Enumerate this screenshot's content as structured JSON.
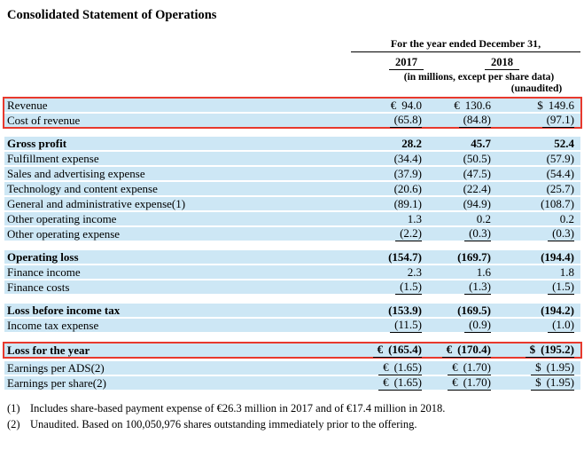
{
  "title": "Consolidated Statement of Operations",
  "header": {
    "period_label": "For the year ended December 31,",
    "year_2017": "2017",
    "year_2018": "2018",
    "units_note": "(in millions, except per share data)",
    "unaudited_note": "(unaudited)"
  },
  "rows": [
    {
      "label": "Revenue",
      "c1s": "€",
      "c1": "94.0",
      "c2s": "€",
      "c2": "130.6",
      "c3s": "$",
      "c3": "149.6"
    },
    {
      "label": "Cost of revenue",
      "c1": "(65.8)",
      "c2": "(84.8)",
      "c3": "(97.1)"
    },
    {
      "label": "Gross profit",
      "c1": "28.2",
      "c2": "45.7",
      "c3": "52.4"
    },
    {
      "label": "Fulfillment expense",
      "c1": "(34.4)",
      "c2": "(50.5)",
      "c3": "(57.9)"
    },
    {
      "label": "Sales and advertising expense",
      "c1": "(37.9)",
      "c2": "(47.5)",
      "c3": "(54.4)"
    },
    {
      "label": "Technology and content expense",
      "c1": "(20.6)",
      "c2": "(22.4)",
      "c3": "(25.7)"
    },
    {
      "label": "General and administrative expense(1)",
      "c1": "(89.1)",
      "c2": "(94.9)",
      "c3": "(108.7)"
    },
    {
      "label": "Other operating income",
      "c1": "1.3",
      "c2": "0.2",
      "c3": "0.2"
    },
    {
      "label": "Other operating expense",
      "c1": "(2.2)",
      "c2": "(0.3)",
      "c3": "(0.3)"
    },
    {
      "label": "Operating loss",
      "c1": "(154.7)",
      "c2": "(169.7)",
      "c3": "(194.4)"
    },
    {
      "label": "Finance income",
      "c1": "2.3",
      "c2": "1.6",
      "c3": "1.8"
    },
    {
      "label": "Finance costs",
      "c1": "(1.5)",
      "c2": "(1.3)",
      "c3": "(1.5)"
    },
    {
      "label": "Loss before income tax",
      "c1": "(153.9)",
      "c2": "(169.5)",
      "c3": "(194.2)"
    },
    {
      "label": "Income tax expense",
      "c1": "(11.5)",
      "c2": "(0.9)",
      "c3": "(1.0)"
    },
    {
      "label": "Loss for the year",
      "c1s": "€",
      "c1": "(165.4)",
      "c2s": "€",
      "c2": "(170.4)",
      "c3s": "$",
      "c3": "(195.2)"
    },
    {
      "label": "Earnings per ADS(2)",
      "c1s": "€",
      "c1": "(1.65)",
      "c2s": "€",
      "c2": "(1.70)",
      "c3s": "$",
      "c3": "(1.95)"
    },
    {
      "label": "Earnings per share(2)",
      "c1s": "€",
      "c1": "(1.65)",
      "c2s": "€",
      "c2": "(1.70)",
      "c3s": "$",
      "c3": "(1.95)"
    }
  ],
  "footnotes": [
    {
      "marker": "(1)",
      "text": "Includes share-based payment expense of €26.3 million in 2017 and of €17.4 million in 2018."
    },
    {
      "marker": "(2)",
      "text": "Unaudited. Based on 100,050,976 shares outstanding immediately prior to the offering."
    }
  ],
  "colors": {
    "row_shade": "#cde7f5",
    "highlight_border": "#e8392d",
    "text": "#000000",
    "background": "#ffffff"
  }
}
